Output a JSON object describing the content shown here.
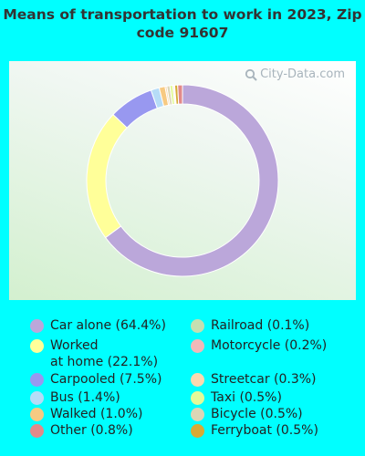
{
  "chart_data": {
    "type": "pie",
    "variant": "donut",
    "title": "Means of transportation to work in 2023, Zip code 91607",
    "slices": [
      {
        "label": "Car alone (64.4%)",
        "value": 64.4,
        "color": "#bba7da"
      },
      {
        "label": "Worked\nat home (22.1%)",
        "value": 22.1,
        "color": "#ffff99"
      },
      {
        "label": "Carpooled (7.5%)",
        "value": 7.5,
        "color": "#9898f0"
      },
      {
        "label": "Bus (1.4%)",
        "value": 1.4,
        "color": "#b6dcf7"
      },
      {
        "label": "Walked (1.0%)",
        "value": 1.0,
        "color": "#f7ca82"
      },
      {
        "label": "Other (0.8%)",
        "value": 0.8,
        "color": "#e28a8a"
      },
      {
        "label": "Railroad (0.1%)",
        "value": 0.1,
        "color": "#c4dfb1"
      },
      {
        "label": "Motorcycle (0.2%)",
        "value": 0.2,
        "color": "#f0b9b9"
      },
      {
        "label": "Streetcar (0.3%)",
        "value": 0.3,
        "color": "#fbd9b0"
      },
      {
        "label": "Taxi (0.5%)",
        "value": 0.5,
        "color": "#e3fa99"
      },
      {
        "label": "Bicycle (0.5%)",
        "value": 0.5,
        "color": "#dcd6b6"
      },
      {
        "label": "Ferryboat (0.5%)",
        "value": 0.5,
        "color": "#d7aa35"
      }
    ],
    "legend_placement": "bottom",
    "watermark": "City-Data.com"
  }
}
